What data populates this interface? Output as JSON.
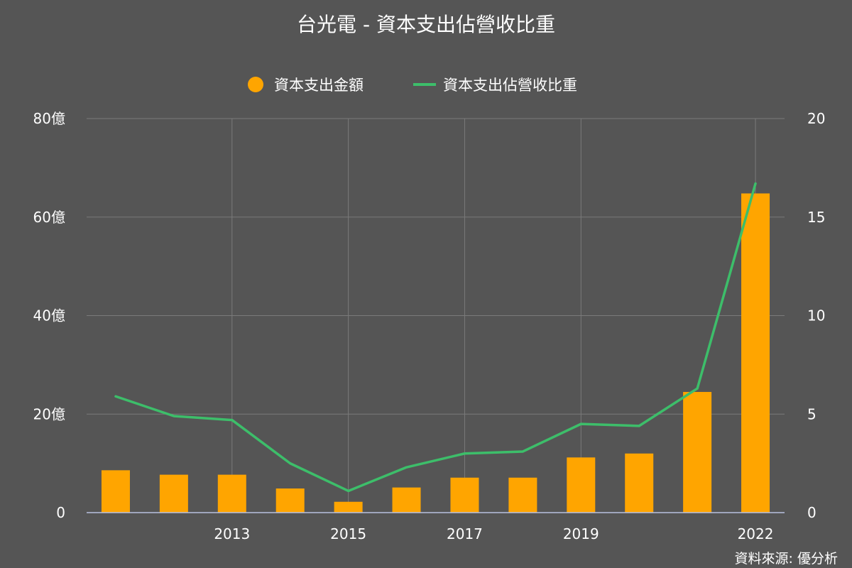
{
  "chart_data": {
    "type": "bar",
    "title": "台光電 - 資本支出佔營收比重",
    "source": "資料來源: 優分析",
    "categories": [
      "2011",
      "2012",
      "2013",
      "2014",
      "2015",
      "2016",
      "2017",
      "2018",
      "2019",
      "2020",
      "2021",
      "2022"
    ],
    "x_tick_labels": [
      "2013",
      "2015",
      "2017",
      "2019",
      "2022"
    ],
    "series": [
      {
        "name": "資本支出金額",
        "type": "bar",
        "axis": "left",
        "color": "#FFA500",
        "values": [
          8.6,
          7.7,
          7.7,
          4.9,
          2.2,
          5.1,
          7.1,
          7.1,
          11.2,
          12.0,
          24.5,
          64.8
        ]
      },
      {
        "name": "資本支出佔營收比重",
        "type": "line",
        "axis": "right",
        "color": "#3DBE6A",
        "values": [
          5.9,
          4.9,
          4.7,
          2.5,
          1.1,
          2.3,
          3.0,
          3.1,
          4.5,
          4.4,
          6.3,
          16.7
        ]
      }
    ],
    "y_left": {
      "ylim": [
        0,
        80
      ],
      "ticks": [
        "0",
        "20億",
        "40億",
        "60億",
        "80億"
      ]
    },
    "y_right": {
      "ylim": [
        0,
        20
      ],
      "ticks": [
        "0",
        "5",
        "10",
        "15",
        "20"
      ]
    },
    "grid": true,
    "legend_position": "top-center"
  }
}
